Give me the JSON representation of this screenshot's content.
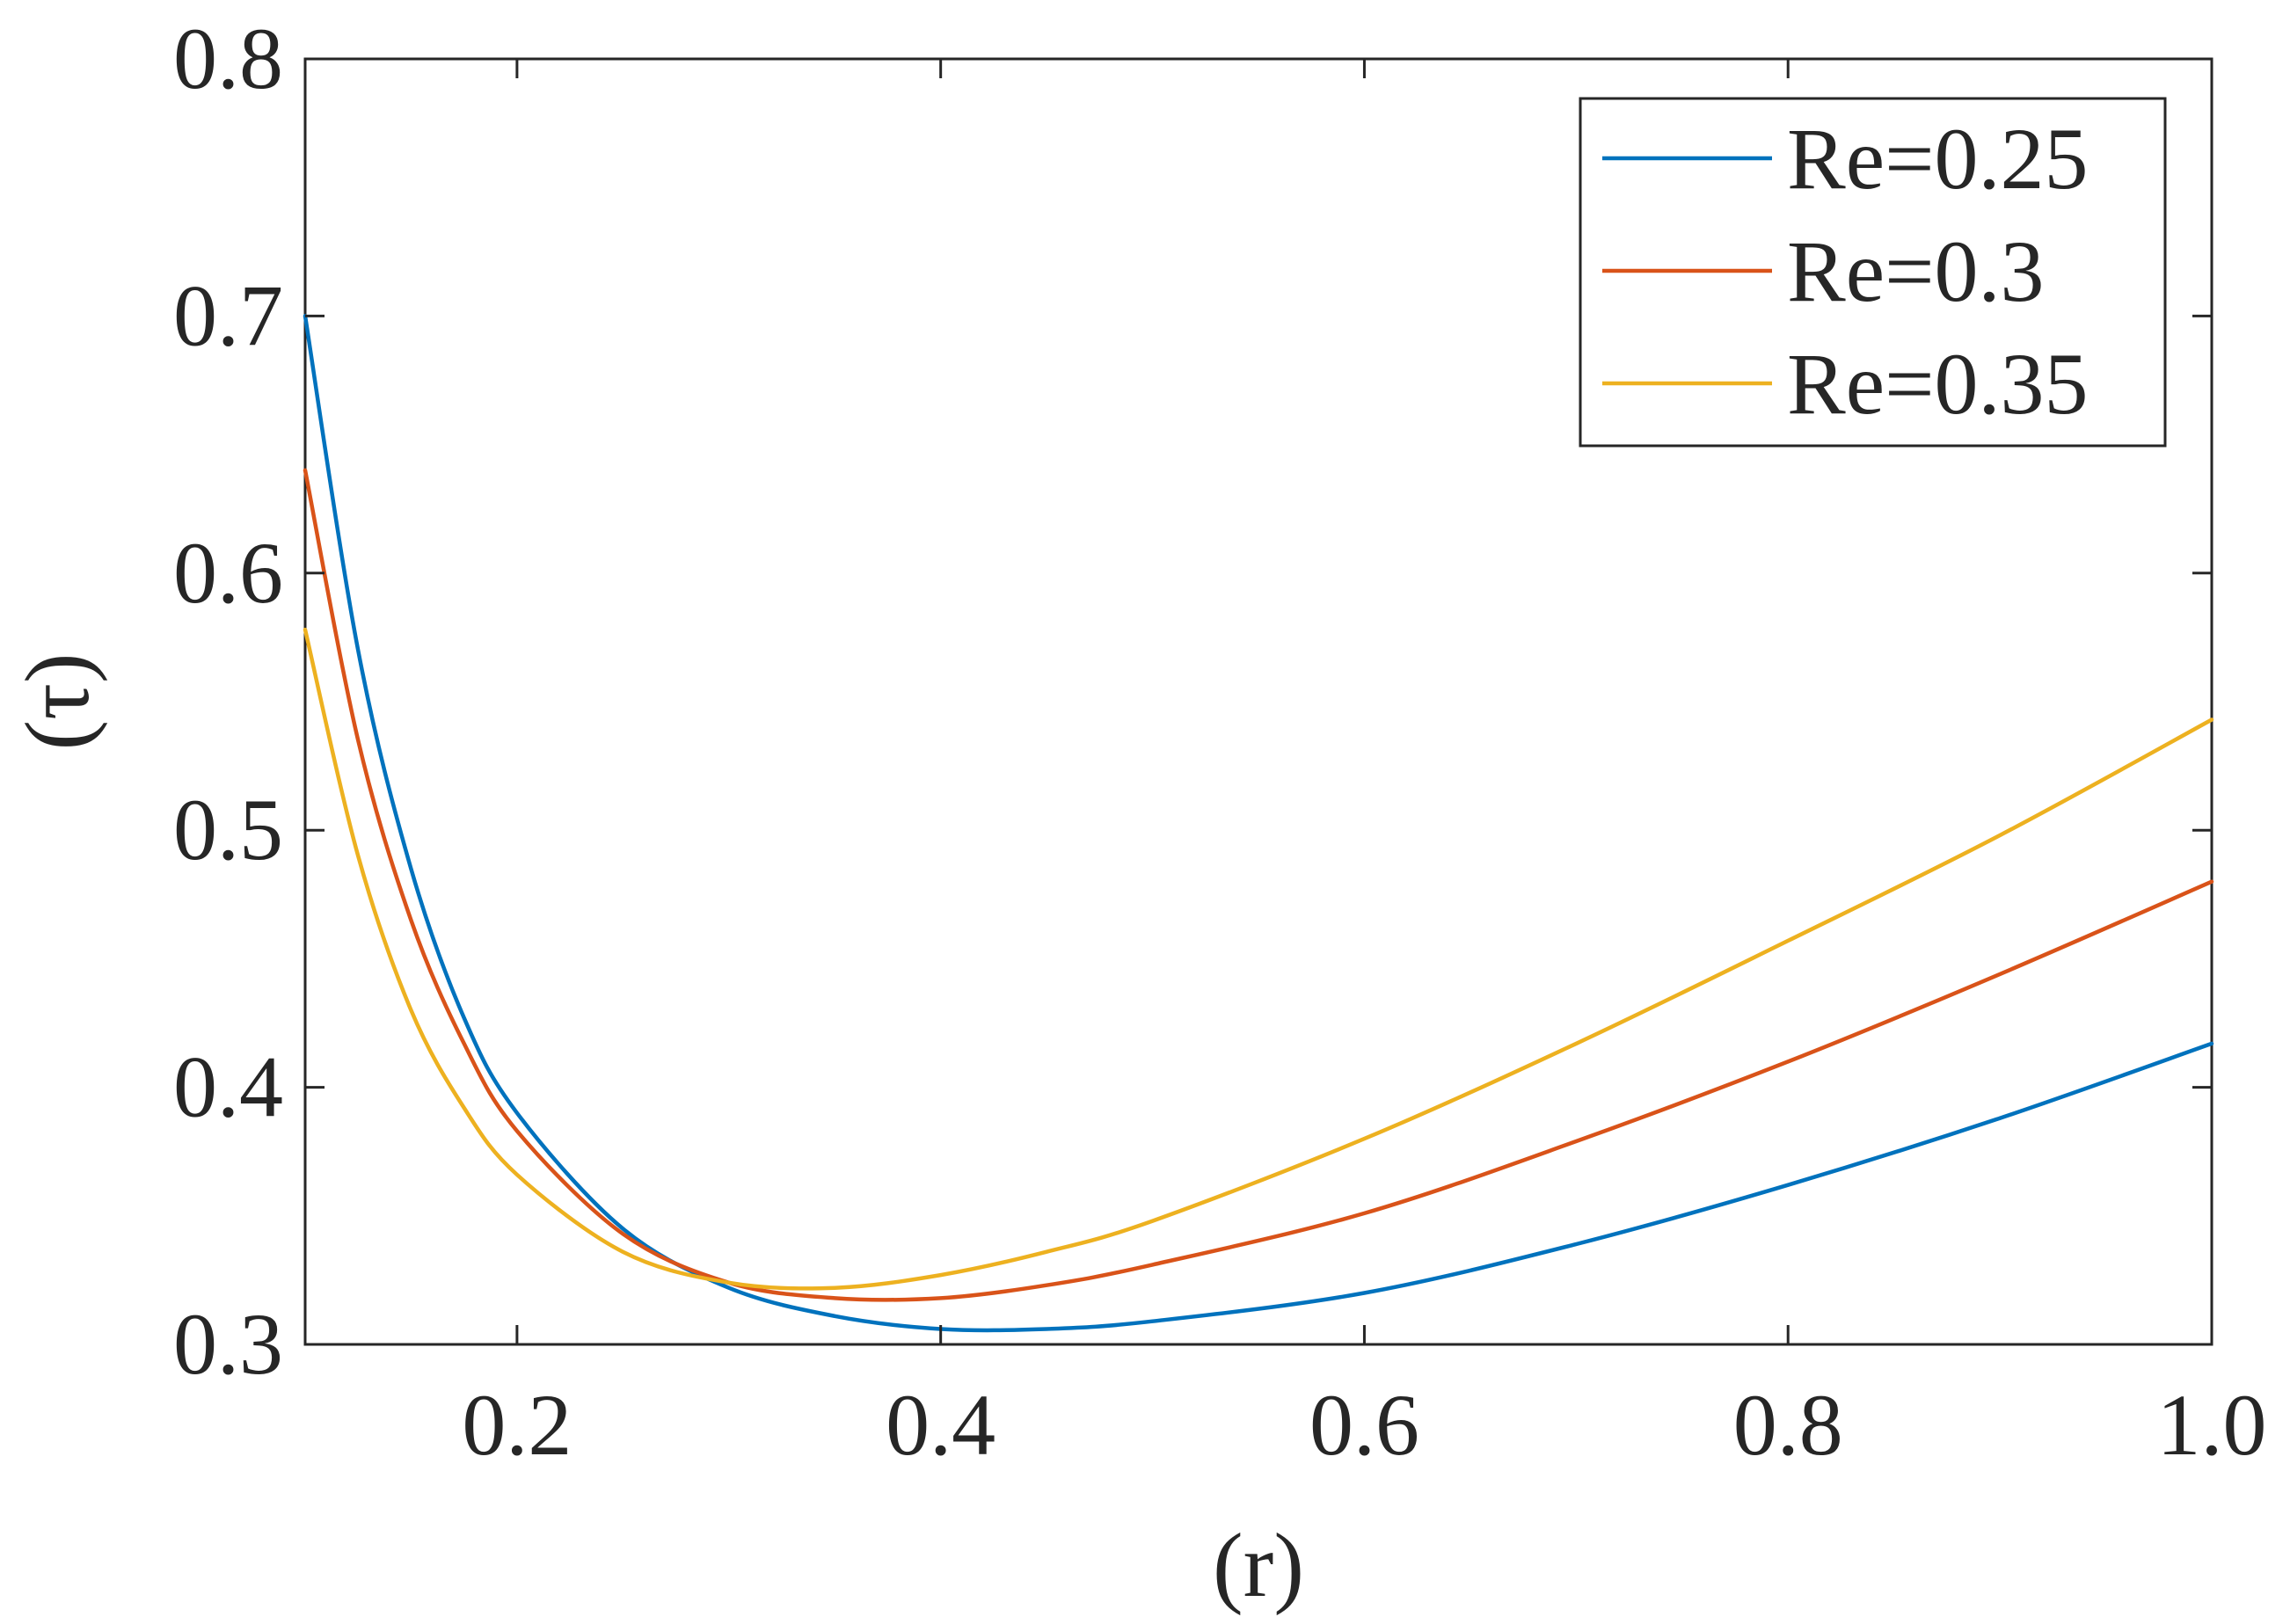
{
  "chart_data": {
    "type": "line",
    "title": "",
    "xlabel": "(r)",
    "ylabel": "(τ)",
    "xlim": [
      0.1,
      1.0
    ],
    "ylim": [
      0.3,
      0.8
    ],
    "xticks": [
      0.2,
      0.4,
      0.6,
      0.8,
      1.0
    ],
    "xtick_labels": [
      "0.2",
      "0.4",
      "0.6",
      "0.8",
      "1.0"
    ],
    "yticks": [
      0.3,
      0.4,
      0.5,
      0.6,
      0.7,
      0.8
    ],
    "ytick_labels": [
      "0.3",
      "0.4",
      "0.5",
      "0.6",
      "0.7",
      "0.8"
    ],
    "grid": false,
    "legend_position": "top-right",
    "series": [
      {
        "name": "Re=0.25",
        "color": "#0072BD",
        "x": [
          0.1,
          0.125,
          0.15,
          0.175,
          0.2,
          0.25,
          0.3,
          0.35,
          0.4,
          0.45,
          0.5,
          0.6,
          0.7,
          0.8,
          0.9,
          1.0
        ],
        "y": [
          0.7,
          0.57,
          0.485,
          0.427,
          0.39,
          0.345,
          0.322,
          0.311,
          0.306,
          0.306,
          0.309,
          0.32,
          0.339,
          0.362,
          0.388,
          0.417
        ]
      },
      {
        "name": "Re=0.3",
        "color": "#D95319",
        "x": [
          0.1,
          0.125,
          0.15,
          0.175,
          0.2,
          0.25,
          0.3,
          0.35,
          0.4,
          0.45,
          0.5,
          0.6,
          0.7,
          0.8,
          0.9,
          1.0
        ],
        "y": [
          0.64,
          0.535,
          0.465,
          0.417,
          0.383,
          0.343,
          0.324,
          0.318,
          0.318,
          0.323,
          0.331,
          0.351,
          0.379,
          0.41,
          0.444,
          0.48
        ]
      },
      {
        "name": "Re=0.35",
        "color": "#EDB120",
        "x": [
          0.1,
          0.125,
          0.15,
          0.175,
          0.2,
          0.25,
          0.3,
          0.35,
          0.4,
          0.45,
          0.5,
          0.6,
          0.7,
          0.8,
          0.9,
          1.0
        ],
        "y": [
          0.578,
          0.49,
          0.43,
          0.392,
          0.366,
          0.336,
          0.324,
          0.322,
          0.327,
          0.336,
          0.348,
          0.38,
          0.417,
          0.457,
          0.498,
          0.543
        ]
      }
    ]
  }
}
